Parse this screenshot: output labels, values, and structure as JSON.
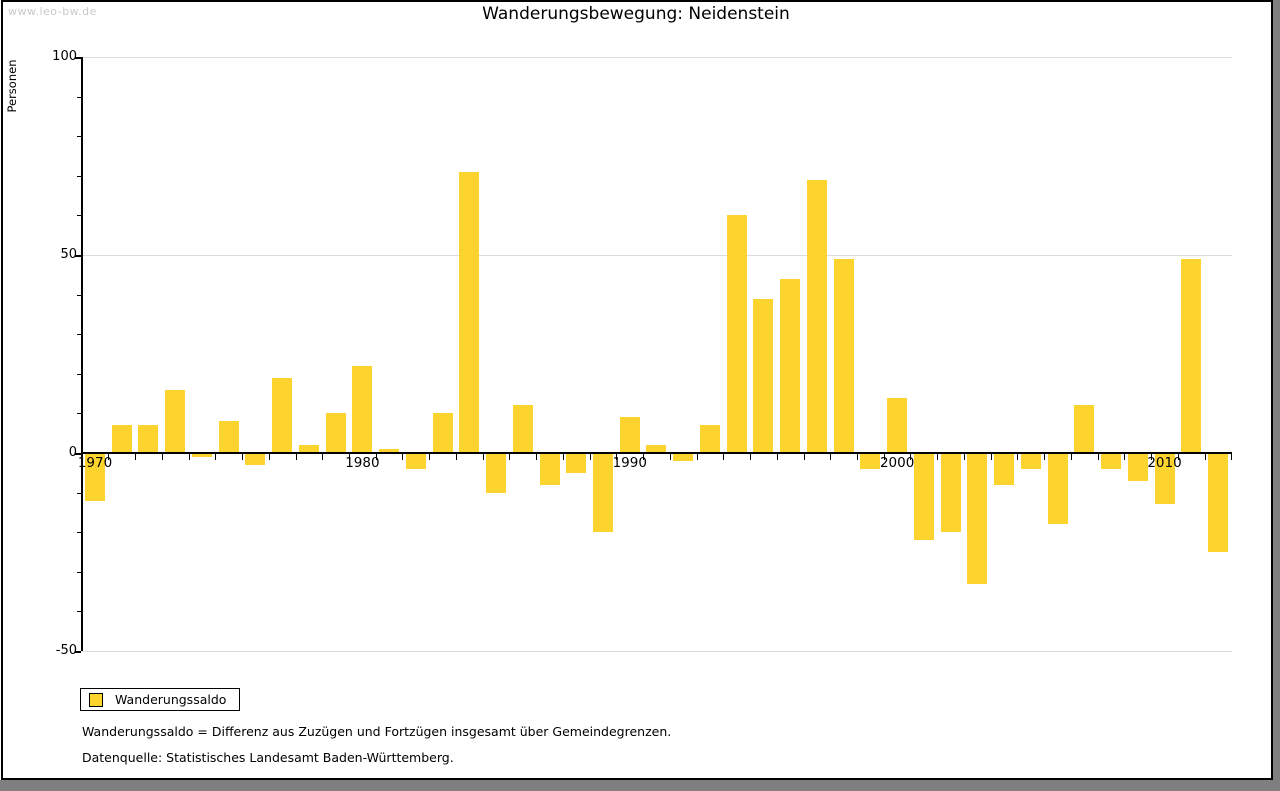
{
  "watermark": "www.leo-bw.de",
  "title": "Wanderungsbewegung: Neidenstein",
  "legend": {
    "label": "Wanderungssaldo"
  },
  "footnotes": [
    "Wanderungssaldo = Differenz aus Zuzügen und Fortzügen insgesamt über Gemeindegrenzen.",
    "Datenquelle: Statistisches Landesamt Baden-Württemberg."
  ],
  "colors": {
    "bar": "#FCD42D",
    "grid": "#DCDCDC",
    "axis": "#000000",
    "watermark": "#C9C9C9",
    "frame_shadow": "#7F7F7F"
  },
  "chart_data": {
    "type": "bar",
    "title": "Wanderungsbewegung: Neidenstein",
    "ylabel": "Personen",
    "xlabel": "",
    "series_name": "Wanderungssaldo",
    "ylim": [
      -50,
      100
    ],
    "yticks": [
      100,
      50,
      0,
      -50
    ],
    "y_minor_tick_interval": 10,
    "x_labeled_ticks": [
      1970,
      1980,
      1990,
      2000,
      2010
    ],
    "grid": "horizontal-major",
    "legend_position": "bottom-left",
    "years": [
      1970,
      1971,
      1972,
      1973,
      1974,
      1975,
      1976,
      1977,
      1978,
      1979,
      1980,
      1981,
      1982,
      1983,
      1984,
      1985,
      1986,
      1987,
      1988,
      1989,
      1990,
      1991,
      1992,
      1993,
      1994,
      1995,
      1996,
      1997,
      1998,
      1999,
      2000,
      2001,
      2002,
      2003,
      2004,
      2005,
      2006,
      2007,
      2008,
      2009,
      2010,
      2011,
      2012
    ],
    "values": [
      -12,
      7,
      7,
      16,
      -1,
      8,
      -3,
      19,
      2,
      10,
      22,
      1,
      -4,
      10,
      71,
      -10,
      12,
      -8,
      -5,
      -20,
      9,
      2,
      -2,
      7,
      60,
      39,
      44,
      69,
      49,
      -4,
      14,
      -22,
      -20,
      -33,
      -8,
      -4,
      -18,
      12,
      -4,
      -7,
      -13,
      49,
      -25
    ]
  }
}
